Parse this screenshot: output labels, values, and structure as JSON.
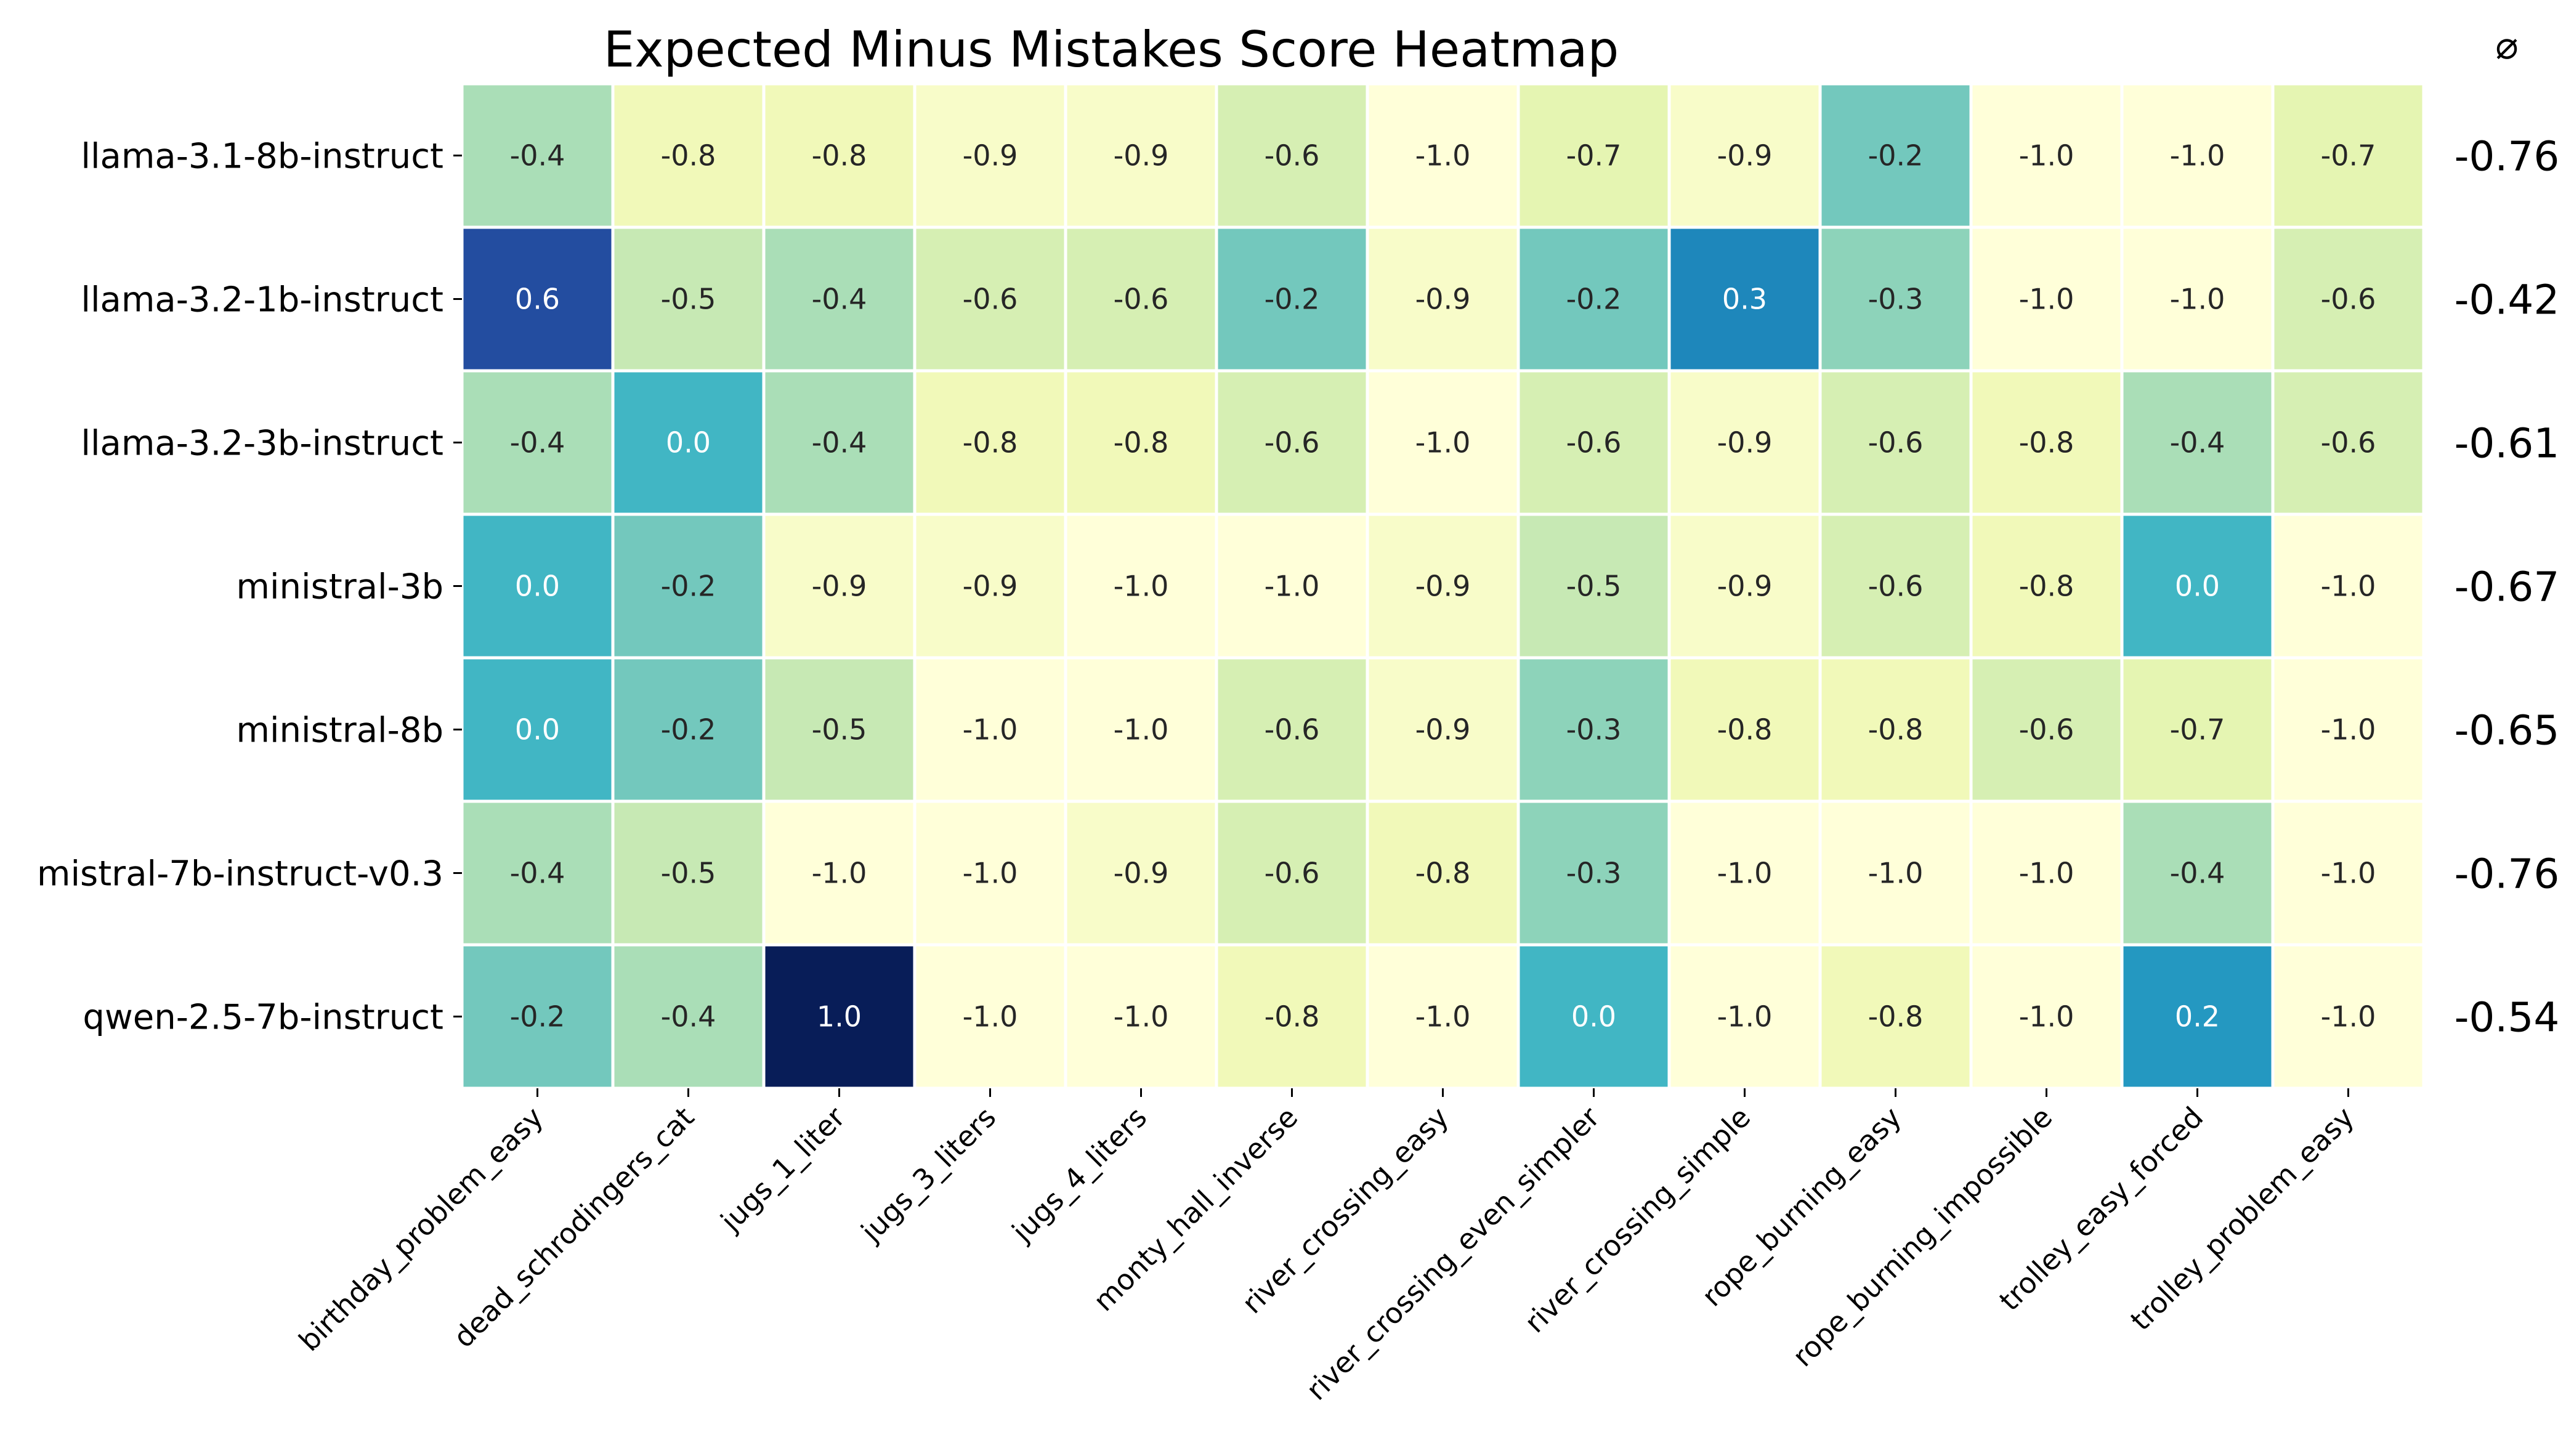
{
  "chart_data": {
    "type": "heatmap",
    "title": "Expected Minus Mistakes Score Heatmap",
    "avg_header": "⌀",
    "rows": [
      "llama-3.1-8b-instruct",
      "llama-3.2-1b-instruct",
      "llama-3.2-3b-instruct",
      "ministral-3b",
      "ministral-8b",
      "mistral-7b-instruct-v0.3",
      "qwen-2.5-7b-instruct"
    ],
    "columns": [
      "birthday_problem_easy",
      "dead_schrodingers_cat",
      "jugs_1_liter",
      "jugs_3_liters",
      "jugs_4_liters",
      "monty_hall_inverse",
      "river_crossing_easy",
      "river_crossing_even_simpler",
      "river_crossing_simple",
      "rope_burning_easy",
      "rope_burning_impossible",
      "trolley_easy_forced",
      "trolley_problem_easy"
    ],
    "values": [
      [
        -0.4,
        -0.8,
        -0.8,
        -0.9,
        -0.9,
        -0.6,
        -1.0,
        -0.7,
        -0.9,
        -0.2,
        -1.0,
        -1.0,
        -0.7
      ],
      [
        0.6,
        -0.5,
        -0.4,
        -0.6,
        -0.6,
        -0.2,
        -0.9,
        -0.2,
        0.3,
        -0.3,
        -1.0,
        -1.0,
        -0.6
      ],
      [
        -0.4,
        0.0,
        -0.4,
        -0.8,
        -0.8,
        -0.6,
        -1.0,
        -0.6,
        -0.9,
        -0.6,
        -0.8,
        -0.4,
        -0.6
      ],
      [
        0.0,
        -0.2,
        -0.9,
        -0.9,
        -1.0,
        -1.0,
        -0.9,
        -0.5,
        -0.9,
        -0.6,
        -0.8,
        0.0,
        -1.0
      ],
      [
        0.0,
        -0.2,
        -0.5,
        -1.0,
        -1.0,
        -0.6,
        -0.9,
        -0.3,
        -0.8,
        -0.8,
        -0.6,
        -0.7,
        -1.0
      ],
      [
        -0.4,
        -0.5,
        -1.0,
        -1.0,
        -0.9,
        -0.6,
        -0.8,
        -0.3,
        -1.0,
        -1.0,
        -1.0,
        -0.4,
        -1.0
      ],
      [
        -0.2,
        -0.4,
        1.0,
        -1.0,
        -1.0,
        -0.8,
        -1.0,
        0.0,
        -1.0,
        -0.8,
        -1.0,
        0.2,
        -1.0
      ]
    ],
    "row_averages": [
      "-0.76",
      "-0.42",
      "-0.61",
      "-0.67",
      "-0.65",
      "-0.76",
      "-0.54"
    ],
    "value_range": [
      -1.0,
      1.0
    ],
    "colormap": "YlGnBu",
    "colormap_stops": [
      "#ffffd9",
      "#edf8b1",
      "#c7e9b4",
      "#7fcdbb",
      "#41b6c4",
      "#1d91c0",
      "#225ea8",
      "#253494",
      "#081d58"
    ],
    "text_color_dark": "#262626",
    "text_color_light": "#ffffff",
    "grid": false
  }
}
